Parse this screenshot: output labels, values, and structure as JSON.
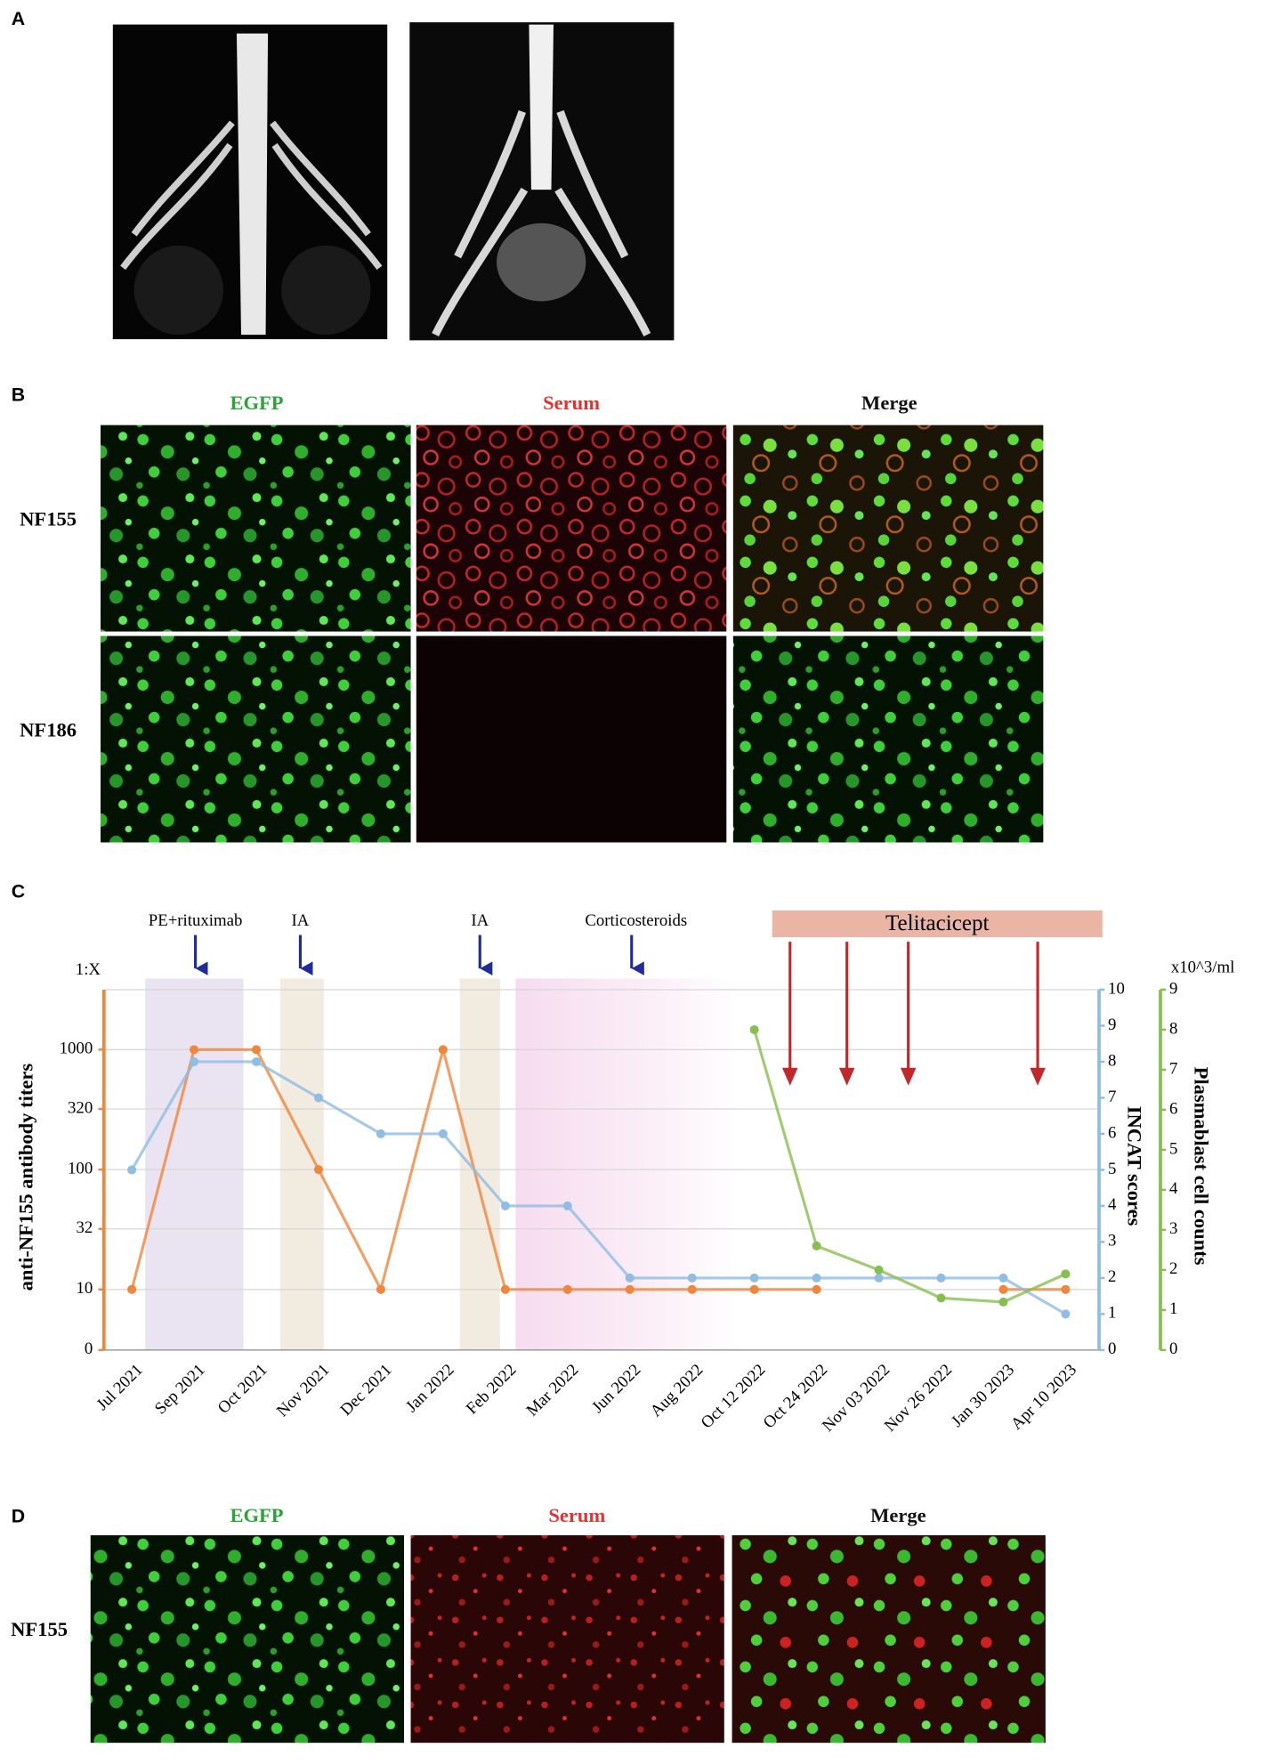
{
  "panel_a": {
    "label": "A"
  },
  "panel_b": {
    "label": "B",
    "columns": [
      "EGFP",
      "Serum",
      "Merge"
    ],
    "rows": [
      "NF155",
      "NF186"
    ]
  },
  "panel_c": {
    "label": "C"
  },
  "panel_d": {
    "label": "D",
    "columns": [
      "EGFP",
      "Serum",
      "Merge"
    ],
    "rows": [
      "NF155"
    ]
  },
  "chart_data": {
    "type": "line",
    "categories": [
      "Jul 2021",
      "Sep 2021",
      "Oct 2021",
      "Nov 2021",
      "Dec 2021",
      "Jan 2022",
      "Feb 2022",
      "Mar 2022",
      "Jun 2022",
      "Aug 2022",
      "Oct 12 2022",
      "Oct 24 2022",
      "Nov 03 2022",
      "Nov 26 2022",
      "Jan 30 2023",
      "Apr 10 2023"
    ],
    "ylabel": "anti-NF155 antibody titers",
    "yunit": "1:X",
    "yscale": "log",
    "ylim": [
      0,
      3162
    ],
    "yticks": [
      0,
      10,
      32,
      100,
      320,
      1000
    ],
    "y2label": "INCAT scores",
    "y2lim": [
      0,
      10
    ],
    "y2ticks": [
      0,
      1,
      2,
      3,
      4,
      5,
      6,
      7,
      8,
      9,
      10
    ],
    "y3label": "Plasmablast cell counts",
    "y3unit": "x10^3/ml",
    "y3lim": [
      0,
      9
    ],
    "y3ticks": [
      0,
      1,
      2,
      3,
      4,
      5,
      6,
      7,
      8,
      9
    ],
    "grid": true,
    "series": [
      {
        "name": "anti-NF155 antibody titers",
        "color": "#f0863c",
        "axis": "y",
        "values": [
          10,
          1000,
          1000,
          100,
          10,
          1000,
          10,
          10,
          10,
          10,
          10,
          10,
          null,
          null,
          10,
          10
        ]
      },
      {
        "name": "INCAT scores",
        "color": "#8fbde3",
        "axis": "y2",
        "values": [
          5,
          8,
          8,
          7,
          6,
          6,
          4,
          4,
          2,
          2,
          2,
          2,
          2,
          2,
          2,
          1
        ]
      },
      {
        "name": "Plasmablast cell counts",
        "color": "#86bf4e",
        "axis": "y3",
        "values": [
          null,
          null,
          null,
          null,
          null,
          null,
          null,
          null,
          null,
          null,
          8,
          2.6,
          2,
          1.3,
          1.2,
          1.9
        ]
      }
    ],
    "annotations": [
      {
        "text": "PE+rituximab"
      },
      {
        "text": "IA"
      },
      {
        "text": "IA"
      },
      {
        "text": "Corticosteroids"
      },
      {
        "text": "Telitacicept"
      }
    ]
  }
}
